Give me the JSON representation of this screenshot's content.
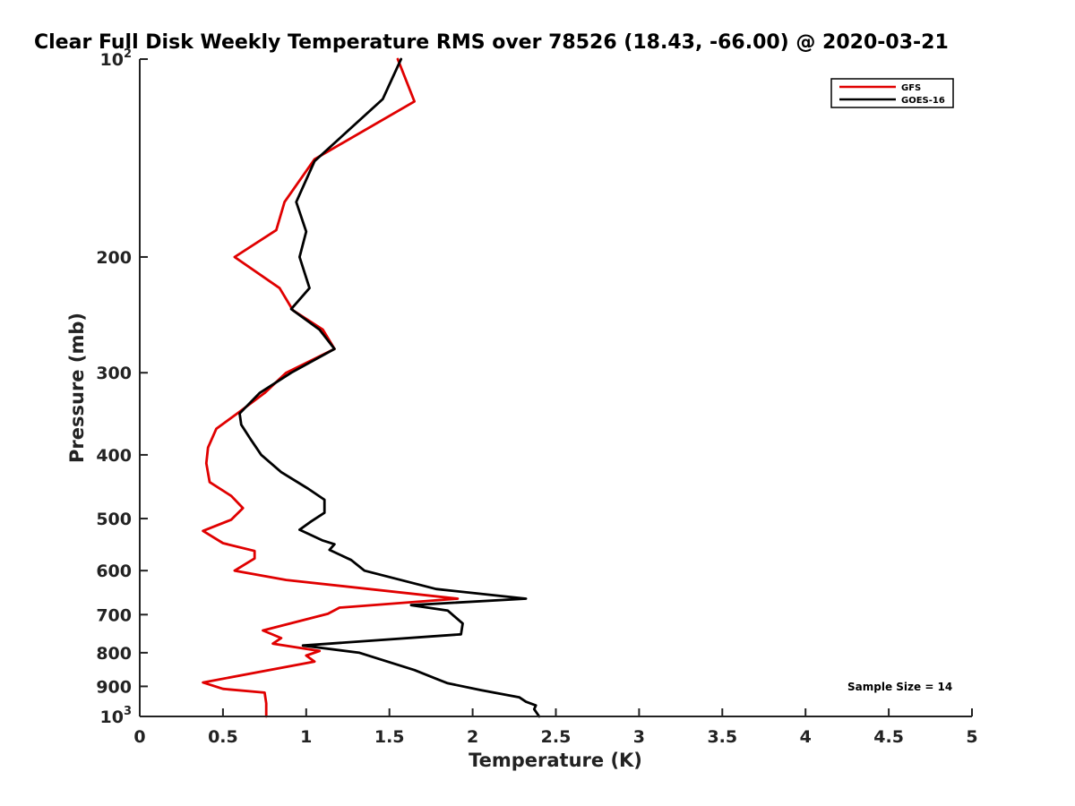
{
  "chart_data": {
    "type": "line",
    "title": "Clear Full Disk Weekly Temperature RMS over 78526 (18.43, -66.00) @ 2020-03-21",
    "xlabel": "Temperature (K)",
    "ylabel": "Pressure (mb)",
    "xlim": [
      0,
      5
    ],
    "ylim": [
      100,
      1000
    ],
    "y_scale": "log",
    "y_reversed": true,
    "grid": false,
    "legend_position": "top-right",
    "x_ticks": [
      {
        "value": 0,
        "label": "0"
      },
      {
        "value": 0.5,
        "label": "0.5"
      },
      {
        "value": 1,
        "label": "1"
      },
      {
        "value": 1.5,
        "label": "1.5"
      },
      {
        "value": 2,
        "label": "2"
      },
      {
        "value": 2.5,
        "label": "2.5"
      },
      {
        "value": 3,
        "label": "3"
      },
      {
        "value": 3.5,
        "label": "3.5"
      },
      {
        "value": 4,
        "label": "4"
      },
      {
        "value": 4.5,
        "label": "4.5"
      },
      {
        "value": 5,
        "label": "5"
      }
    ],
    "y_ticks": [
      {
        "value": 100,
        "base": "10",
        "exp": "2"
      },
      {
        "value": 200,
        "label": "200"
      },
      {
        "value": 300,
        "label": "300"
      },
      {
        "value": 400,
        "label": "400"
      },
      {
        "value": 500,
        "label": "500"
      },
      {
        "value": 600,
        "label": "600"
      },
      {
        "value": 700,
        "label": "700"
      },
      {
        "value": 800,
        "label": "800"
      },
      {
        "value": 900,
        "label": "900"
      },
      {
        "value": 1000,
        "base": "10",
        "exp": "3"
      }
    ],
    "annotation": "Sample Size = 14",
    "series": [
      {
        "name": "GFS",
        "color": "#e00000",
        "points": [
          [
            1.55,
            100
          ],
          [
            1.65,
            116
          ],
          [
            1.05,
            142
          ],
          [
            0.87,
            165
          ],
          [
            0.82,
            182
          ],
          [
            0.57,
            200
          ],
          [
            0.84,
            223
          ],
          [
            0.92,
            241
          ],
          [
            1.1,
            258
          ],
          [
            1.17,
            276
          ],
          [
            0.88,
            300
          ],
          [
            0.75,
            322
          ],
          [
            0.6,
            344
          ],
          [
            0.46,
            365
          ],
          [
            0.41,
            390
          ],
          [
            0.4,
            412
          ],
          [
            0.42,
            440
          ],
          [
            0.55,
            462
          ],
          [
            0.62,
            482
          ],
          [
            0.55,
            502
          ],
          [
            0.38,
            522
          ],
          [
            0.5,
            545
          ],
          [
            0.69,
            560
          ],
          [
            0.69,
            575
          ],
          [
            0.57,
            600
          ],
          [
            0.88,
            620
          ],
          [
            1.91,
            662
          ],
          [
            1.2,
            683
          ],
          [
            1.13,
            698
          ],
          [
            0.74,
            740
          ],
          [
            0.85,
            760
          ],
          [
            0.8,
            775
          ],
          [
            1.08,
            795
          ],
          [
            1.0,
            808
          ],
          [
            1.05,
            825
          ],
          [
            0.38,
            888
          ],
          [
            0.5,
            908
          ],
          [
            0.75,
            920
          ],
          [
            0.76,
            955
          ],
          [
            0.76,
            1000
          ]
        ]
      },
      {
        "name": "GOES-16",
        "color": "#000000",
        "points": [
          [
            1.57,
            100
          ],
          [
            1.46,
            115
          ],
          [
            1.05,
            143
          ],
          [
            0.94,
            165
          ],
          [
            1.0,
            183
          ],
          [
            0.96,
            200
          ],
          [
            1.02,
            223
          ],
          [
            0.91,
            240
          ],
          [
            1.08,
            258
          ],
          [
            1.17,
            276
          ],
          [
            0.91,
            300
          ],
          [
            0.72,
            322
          ],
          [
            0.6,
            346
          ],
          [
            0.61,
            360
          ],
          [
            0.67,
            380
          ],
          [
            0.73,
            400
          ],
          [
            0.85,
            425
          ],
          [
            1.01,
            450
          ],
          [
            1.11,
            468
          ],
          [
            1.11,
            490
          ],
          [
            1.03,
            505
          ],
          [
            0.96,
            520
          ],
          [
            1.1,
            540
          ],
          [
            1.17,
            547
          ],
          [
            1.14,
            558
          ],
          [
            1.27,
            578
          ],
          [
            1.35,
            600
          ],
          [
            1.78,
            640
          ],
          [
            2.32,
            662
          ],
          [
            1.63,
            677
          ],
          [
            1.85,
            690
          ],
          [
            1.94,
            722
          ],
          [
            1.93,
            750
          ],
          [
            0.98,
            780
          ],
          [
            1.32,
            800
          ],
          [
            1.65,
            850
          ],
          [
            1.8,
            880
          ],
          [
            1.85,
            890
          ],
          [
            2.05,
            912
          ],
          [
            2.28,
            935
          ],
          [
            2.32,
            950
          ],
          [
            2.38,
            962
          ],
          [
            2.37,
            975
          ],
          [
            2.4,
            1000
          ]
        ]
      }
    ]
  }
}
